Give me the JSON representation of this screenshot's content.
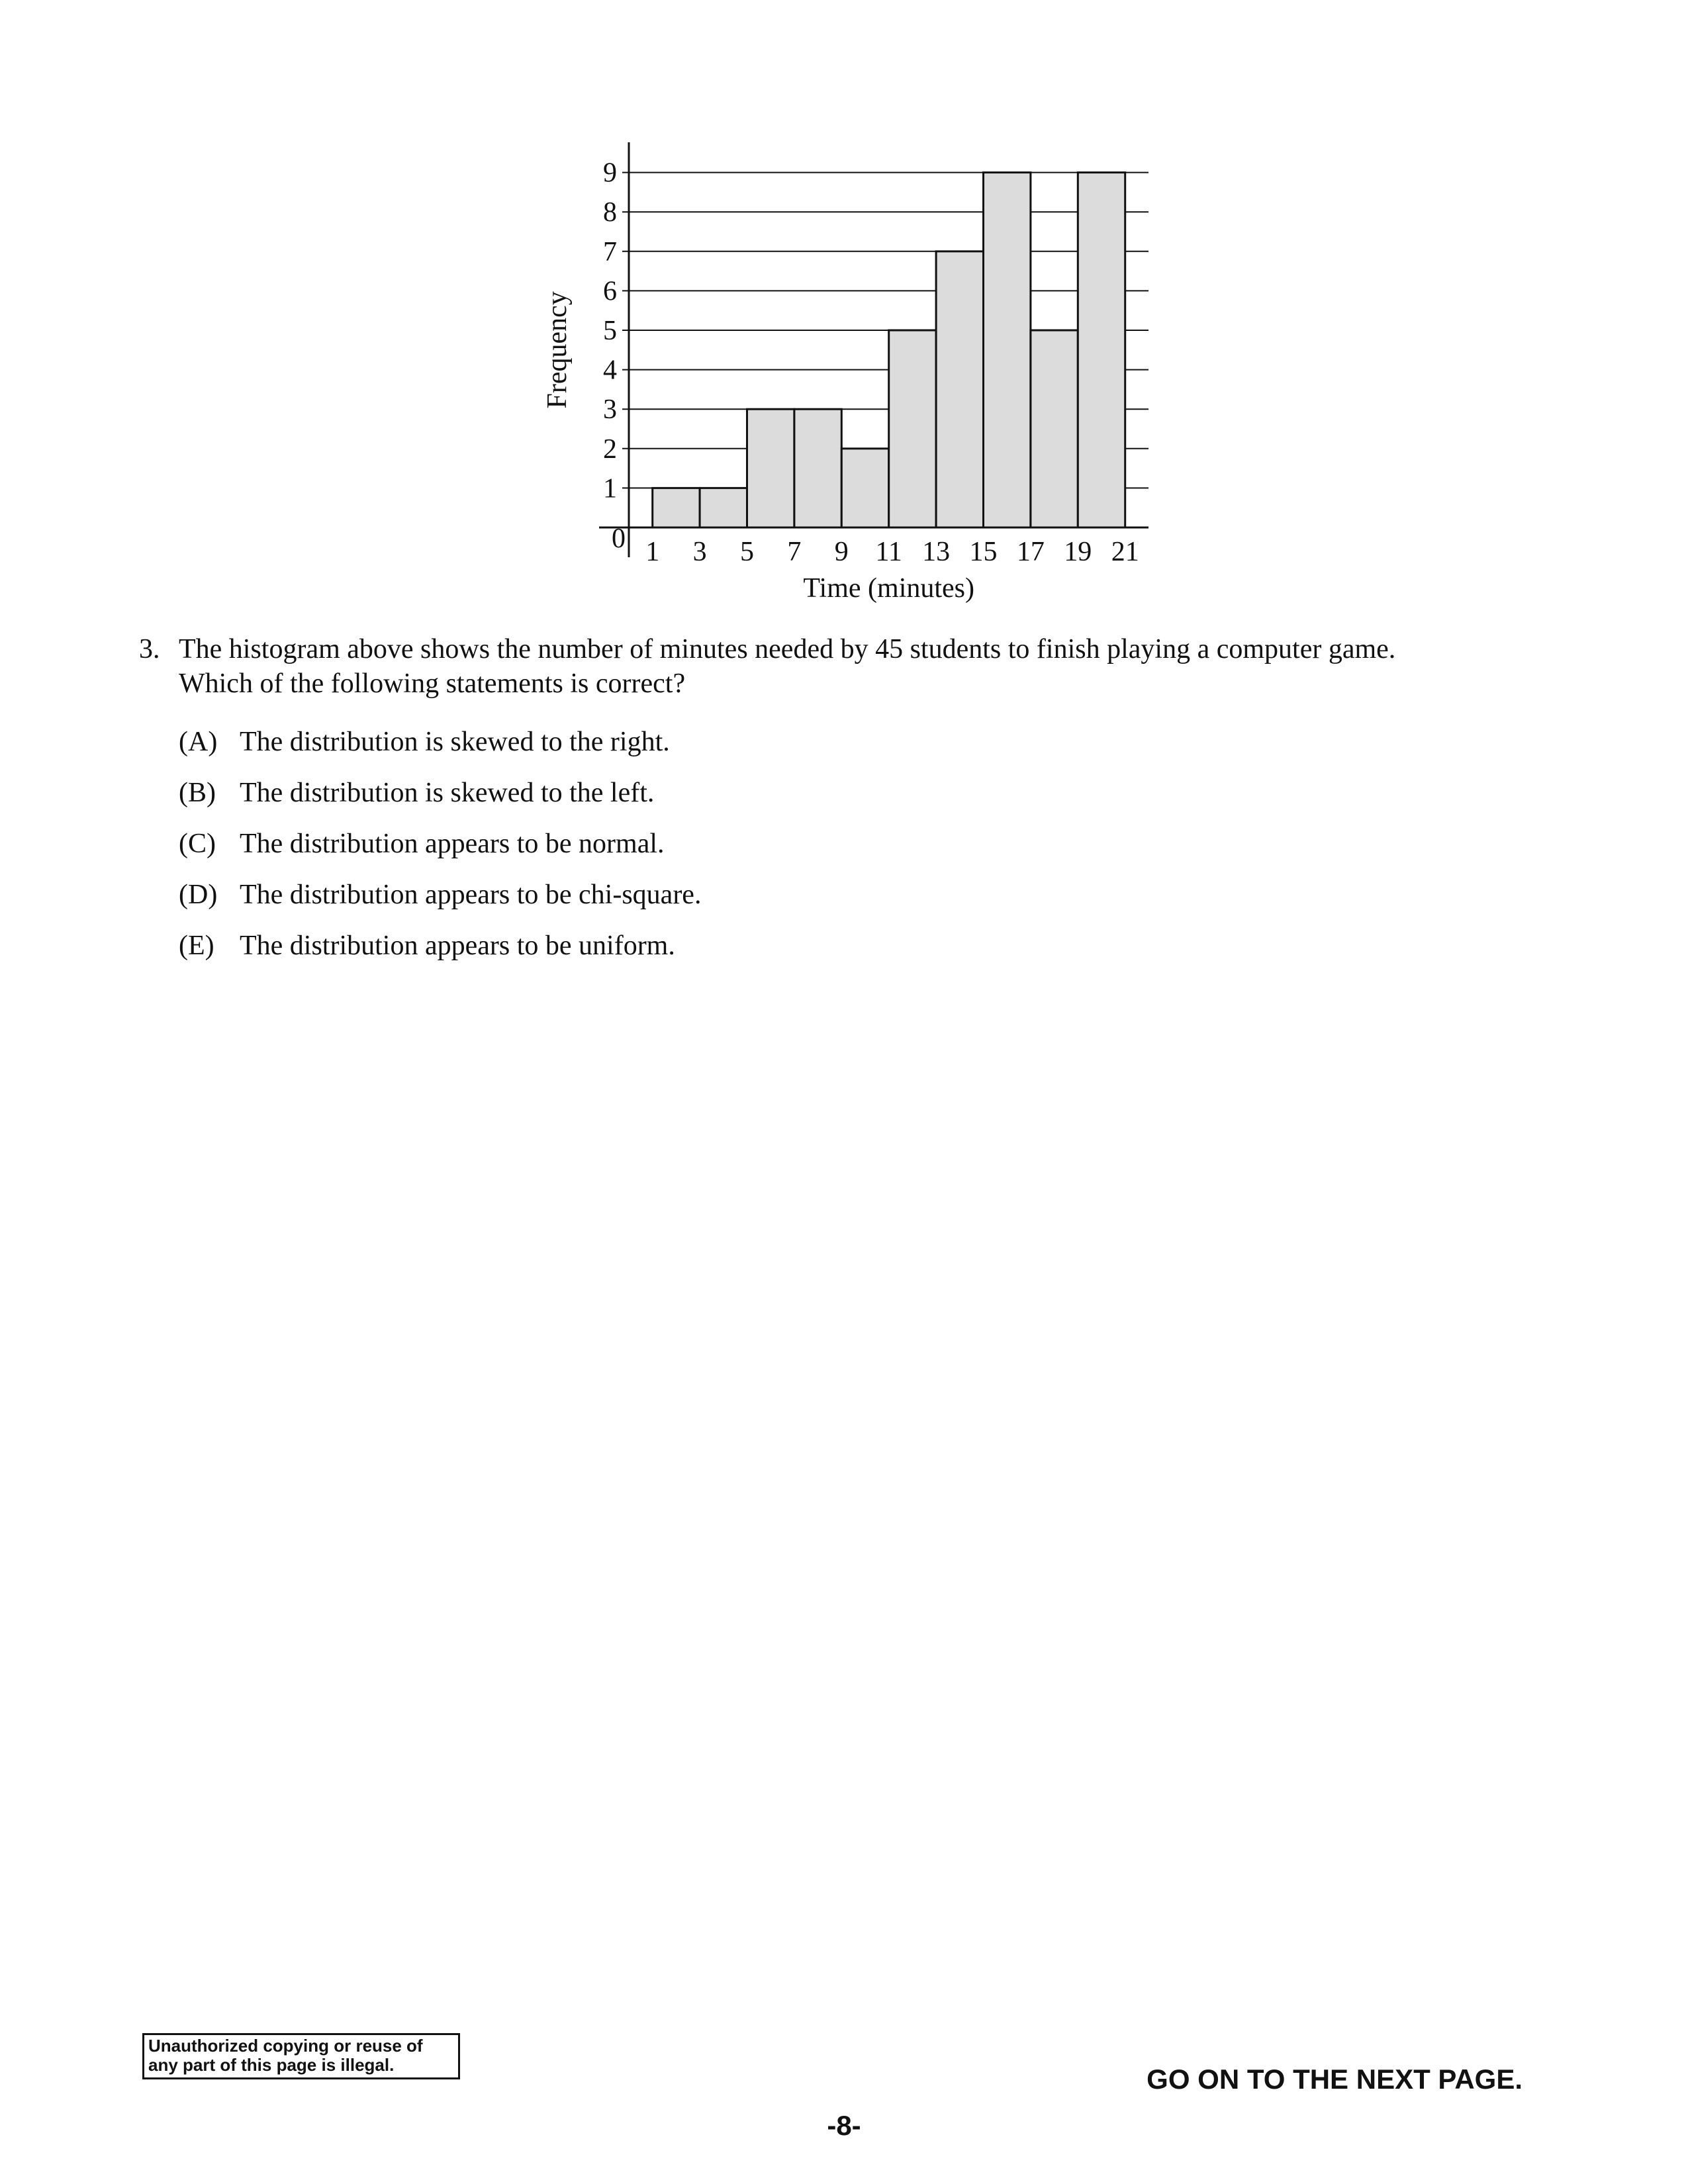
{
  "question": {
    "number": "3.",
    "text_line1": "The histogram above shows the number of minutes needed by 45 students to finish playing a computer game.",
    "text_line2": "Which of the following statements is correct?",
    "options": [
      {
        "letter": "(A)",
        "text": "The distribution is skewed to the right."
      },
      {
        "letter": "(B)",
        "text": "The distribution is skewed to the left."
      },
      {
        "letter": "(C)",
        "text": "The distribution appears to be normal."
      },
      {
        "letter": "(D)",
        "text": "The distribution appears to be chi-square."
      },
      {
        "letter": "(E)",
        "text": "The distribution appears to be uniform."
      }
    ]
  },
  "footer": {
    "notice_line1": "Unauthorized copying or reuse of",
    "notice_line2": "any part of this page is illegal.",
    "next_page": "GO ON TO THE NEXT PAGE.",
    "page_number": "-8-"
  },
  "chart_data": {
    "type": "bar",
    "subtype": "histogram",
    "bin_edges": [
      1,
      3,
      5,
      7,
      9,
      11,
      13,
      15,
      17,
      19,
      21
    ],
    "values": [
      1,
      1,
      3,
      3,
      2,
      5,
      7,
      9,
      5,
      9
    ],
    "x_tick_labels": [
      "1",
      "3",
      "5",
      "7",
      "9",
      "11",
      "13",
      "15",
      "17",
      "19",
      "21"
    ],
    "y_tick_labels": [
      "0",
      "1",
      "2",
      "3",
      "4",
      "5",
      "6",
      "7",
      "8",
      "9"
    ],
    "xlabel": "Time (minutes)",
    "ylabel": "Frequency",
    "xlim": [
      0,
      22
    ],
    "ylim": [
      0,
      9
    ],
    "grid": true,
    "bar_fill_color": "#dcdcdc",
    "line_color": "#111111"
  }
}
